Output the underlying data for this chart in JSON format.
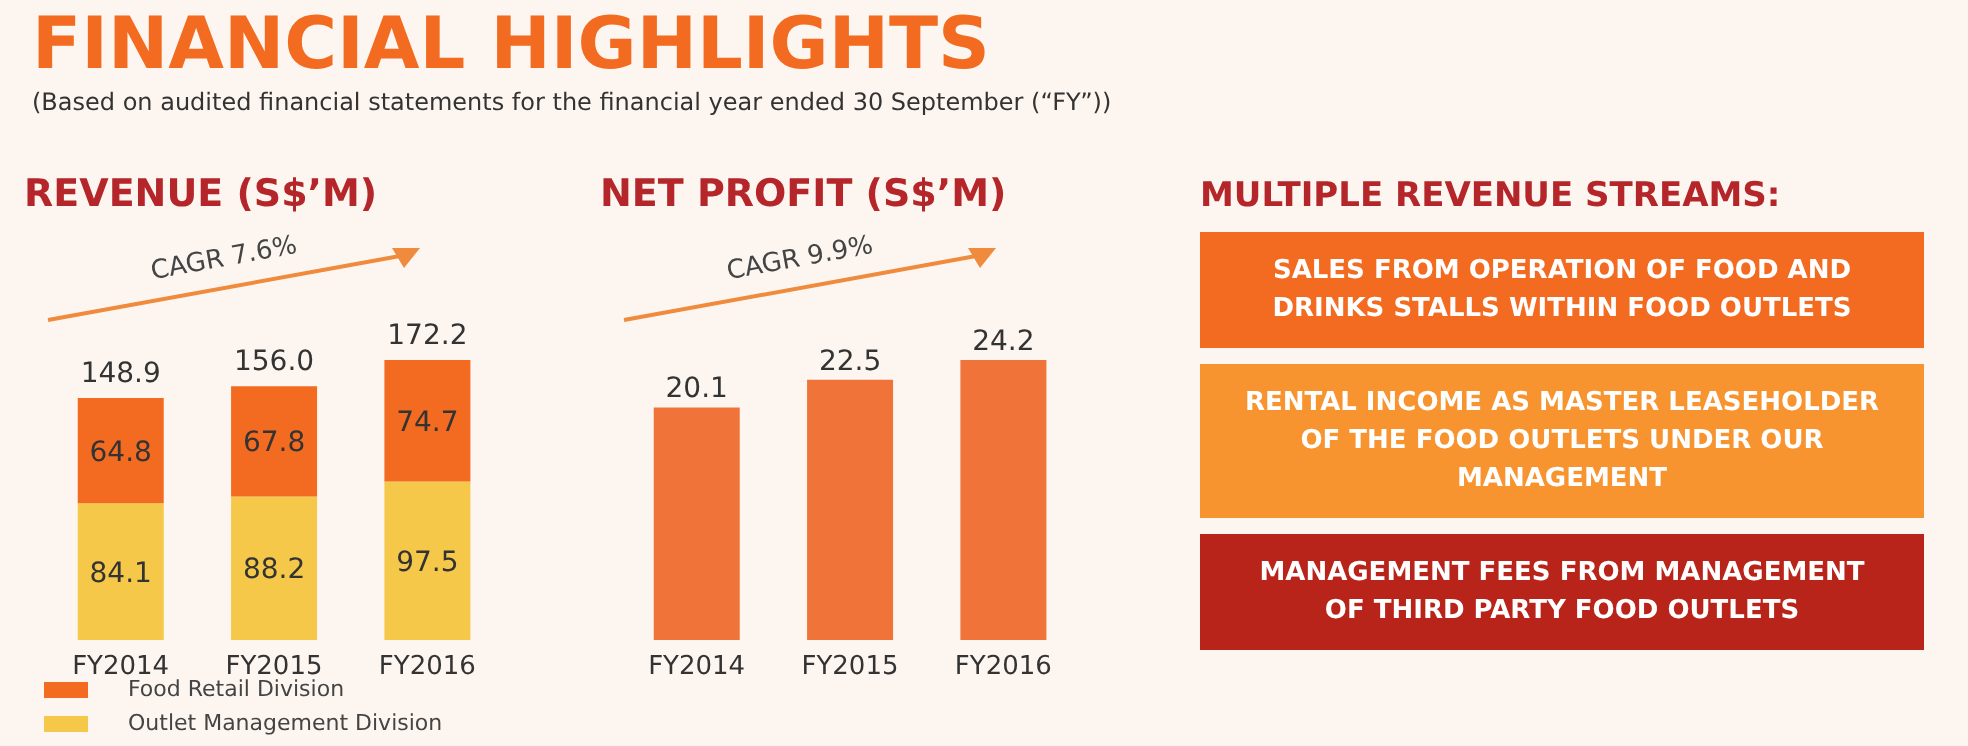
{
  "chart_data": [
    {
      "type": "other",
      "title": "FINANCIAL HIGHLIGHTS",
      "subtitle": "(Based on audited financial statements for the financial year ended 30 September (“FY”))"
    },
    {
      "type": "bar",
      "title": "REVENUE (S$’M)",
      "categories": [
        "FY2014",
        "FY2015",
        "FY2016"
      ],
      "stacked": true,
      "data_labels": true,
      "legend": "bottom",
      "totals": [
        "148.9",
        "156.0",
        "172.2"
      ],
      "annotations": [
        "CAGR 7.6%"
      ],
      "series": [
        {
          "name": "Outlet Management Division",
          "color": "#f5c84a",
          "values": [
            84.1,
            88.2,
            97.5
          ]
        },
        {
          "name": "Food Retail Division",
          "color": "#f26b21",
          "values": [
            64.8,
            67.8,
            74.7
          ]
        }
      ]
    },
    {
      "type": "bar",
      "title": "NET PROFIT (S$’M)",
      "categories": [
        "FY2014",
        "FY2015",
        "FY2016"
      ],
      "data_labels": true,
      "annotations": [
        "CAGR 9.9%"
      ],
      "series": [
        {
          "color": "#f0743a",
          "values": [
            20.1,
            22.5,
            24.2
          ]
        }
      ]
    },
    {
      "type": "other",
      "title": "MULTIPLE REVENUE STREAMS:",
      "annotations": [
        "SALES FROM OPERATION OF FOOD AND DRINKS STALLS WITHIN FOOD OUTLETS",
        "RENTAL INCOME AS MASTER LEASEHOLDER OF THE FOOD OUTLETS UNDER OUR MANAGEMENT",
        "MANAGEMENT FEES FROM MANAGEMENT OF THIRD PARTY FOOD OUTLETS"
      ]
    }
  ]
}
